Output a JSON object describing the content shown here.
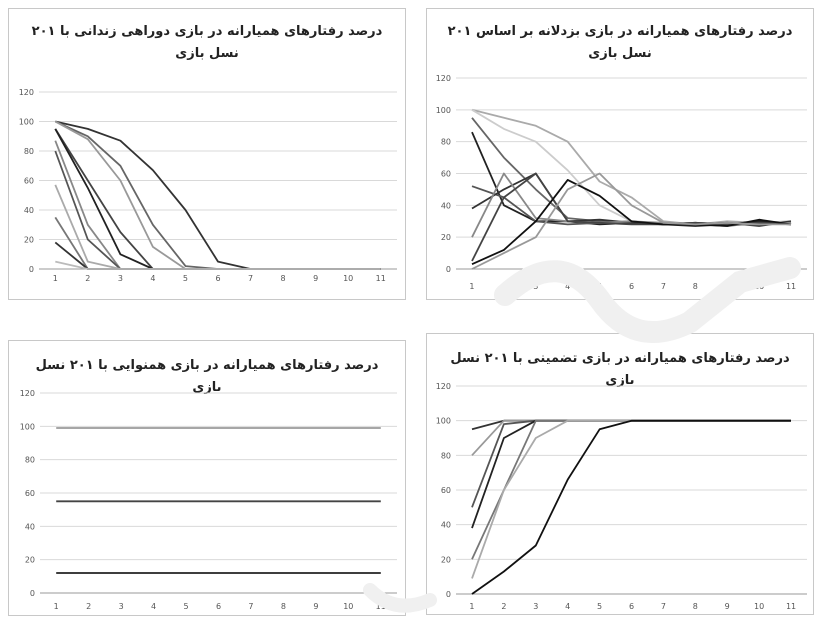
{
  "chart_data": [
    {
      "type": "line",
      "title": "درصد رفتارهای همیارانه در بازی دوراهی زندانی با ۲۰۱ نسل بازی",
      "x": [
        1,
        2,
        3,
        4,
        5,
        6,
        7,
        8,
        9,
        10,
        11
      ],
      "ylim": [
        0,
        120
      ],
      "yticks": [
        0,
        20,
        40,
        60,
        80,
        100,
        120
      ],
      "grid": true,
      "legend": "none",
      "series": [
        {
          "color": "#333333",
          "values": [
            100,
            95,
            87,
            67,
            40,
            5,
            0,
            0,
            0,
            0,
            0
          ]
        },
        {
          "color": "#666666",
          "values": [
            100,
            90,
            70,
            30,
            2,
            0,
            0,
            0,
            0,
            0,
            0
          ]
        },
        {
          "color": "#999999",
          "values": [
            100,
            88,
            60,
            15,
            0,
            0,
            0,
            0,
            0,
            0,
            0
          ]
        },
        {
          "color": "#444444",
          "values": [
            95,
            60,
            25,
            0,
            0,
            0,
            0,
            0,
            0,
            0,
            0
          ]
        },
        {
          "color": "#222222",
          "values": [
            95,
            55,
            10,
            0,
            0,
            0,
            0,
            0,
            0,
            0,
            0
          ]
        },
        {
          "color": "#888888",
          "values": [
            87,
            30,
            0,
            0,
            0,
            0,
            0,
            0,
            0,
            0,
            0
          ]
        },
        {
          "color": "#555555",
          "values": [
            80,
            20,
            0,
            0,
            0,
            0,
            0,
            0,
            0,
            0,
            0
          ]
        },
        {
          "color": "#aaaaaa",
          "values": [
            57,
            5,
            0,
            0,
            0,
            0,
            0,
            0,
            0,
            0,
            0
          ]
        },
        {
          "color": "#777777",
          "values": [
            35,
            0,
            0,
            0,
            0,
            0,
            0,
            0,
            0,
            0,
            0
          ]
        },
        {
          "color": "#333333",
          "values": [
            18,
            0,
            0,
            0,
            0,
            0,
            0,
            0,
            0,
            0,
            0
          ]
        },
        {
          "color": "#bbbbbb",
          "values": [
            5,
            0,
            0,
            0,
            0,
            0,
            0,
            0,
            0,
            0,
            0
          ]
        }
      ]
    },
    {
      "type": "line",
      "title": "درصد رفتارهای همیارانه در بازی بزدلانه بر اساس ۲۰۱ نسل بازی",
      "x": [
        1,
        2,
        3,
        4,
        5,
        6,
        7,
        8,
        9,
        10,
        11
      ],
      "ylim": [
        0,
        120
      ],
      "yticks": [
        0,
        20,
        40,
        60,
        80,
        100,
        120
      ],
      "grid": true,
      "legend": "none",
      "series": [
        {
          "color": "#aaaaaa",
          "values": [
            100,
            95,
            90,
            80,
            55,
            45,
            30,
            28,
            30,
            29,
            30
          ]
        },
        {
          "color": "#cccccc",
          "values": [
            100,
            88,
            80,
            62,
            40,
            30,
            28,
            29,
            28,
            30,
            29
          ]
        },
        {
          "color": "#666666",
          "values": [
            95,
            70,
            50,
            32,
            30,
            29,
            28,
            28,
            27,
            29,
            28
          ]
        },
        {
          "color": "#222222",
          "values": [
            86,
            40,
            30,
            30,
            28,
            29,
            28,
            27,
            28,
            30,
            28
          ]
        },
        {
          "color": "#555555",
          "values": [
            52,
            45,
            30,
            28,
            29,
            30,
            28,
            29,
            28,
            28,
            29
          ]
        },
        {
          "color": "#333333",
          "values": [
            38,
            50,
            60,
            30,
            31,
            29,
            28,
            28,
            29,
            27,
            30
          ]
        },
        {
          "color": "#888888",
          "values": [
            20,
            60,
            32,
            30,
            29,
            30,
            29,
            28,
            28,
            28,
            29
          ]
        },
        {
          "color": "#444444",
          "values": [
            5,
            45,
            60,
            30,
            29,
            28,
            28,
            29,
            28,
            29,
            28
          ]
        },
        {
          "color": "#111111",
          "values": [
            3,
            12,
            30,
            56,
            46,
            30,
            28,
            28,
            27,
            31,
            28
          ]
        },
        {
          "color": "#999999",
          "values": [
            0,
            10,
            20,
            50,
            60,
            40,
            29,
            28,
            29,
            28,
            28
          ]
        }
      ]
    },
    {
      "type": "line",
      "title": "درصد رفتارهای همیارانه در بازی همنوایی با ۲۰۱ نسل بازی",
      "x": [
        1,
        2,
        3,
        4,
        5,
        6,
        7,
        8,
        9,
        10,
        11
      ],
      "ylim": [
        0,
        120
      ],
      "yticks": [
        0,
        20,
        40,
        60,
        80,
        100,
        120
      ],
      "grid": true,
      "legend": "none",
      "series": [
        {
          "color": "#999999",
          "values": [
            99,
            99,
            99,
            99,
            99,
            99,
            99,
            99,
            99,
            99,
            99
          ]
        },
        {
          "color": "#444444",
          "values": [
            55,
            55,
            55,
            55,
            55,
            55,
            55,
            55,
            55,
            55,
            55
          ]
        },
        {
          "color": "#222222",
          "values": [
            12,
            12,
            12,
            12,
            12,
            12,
            12,
            12,
            12,
            12,
            12
          ]
        }
      ]
    },
    {
      "type": "line",
      "title": "درصد رفتارهای همیارانه در بازی تضمینی با ۲۰۱ نسل بازی",
      "x": [
        1,
        2,
        3,
        4,
        5,
        6,
        7,
        8,
        9,
        10,
        11
      ],
      "ylim": [
        0,
        120
      ],
      "yticks": [
        0,
        20,
        40,
        60,
        80,
        100,
        120
      ],
      "grid": true,
      "legend": "none",
      "series": [
        {
          "color": "#333333",
          "values": [
            95,
            100,
            100,
            100,
            100,
            100,
            100,
            100,
            100,
            100,
            100
          ]
        },
        {
          "color": "#999999",
          "values": [
            80,
            100,
            100,
            100,
            100,
            100,
            100,
            100,
            100,
            100,
            100
          ]
        },
        {
          "color": "#555555",
          "values": [
            50,
            98,
            100,
            100,
            100,
            100,
            100,
            100,
            100,
            100,
            100
          ]
        },
        {
          "color": "#222222",
          "values": [
            38,
            90,
            100,
            100,
            100,
            100,
            100,
            100,
            100,
            100,
            100
          ]
        },
        {
          "color": "#777777",
          "values": [
            20,
            60,
            100,
            100,
            100,
            100,
            100,
            100,
            100,
            100,
            100
          ]
        },
        {
          "color": "#aaaaaa",
          "values": [
            9,
            60,
            90,
            100,
            100,
            100,
            100,
            100,
            100,
            100,
            100
          ]
        },
        {
          "color": "#111111",
          "values": [
            0,
            13,
            28,
            66,
            95,
            100,
            100,
            100,
            100,
            100,
            100
          ]
        }
      ]
    }
  ]
}
